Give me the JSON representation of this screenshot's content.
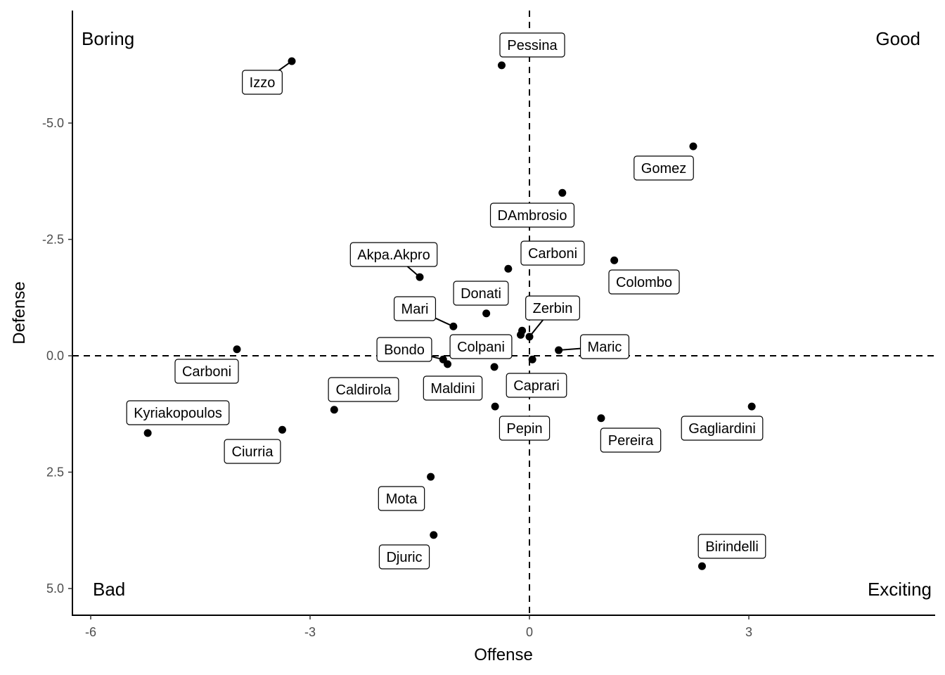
{
  "chart_data": {
    "type": "scatter",
    "xlabel": "Offense",
    "ylabel": "Defense",
    "xlim": [
      -6.25,
      5.5
    ],
    "ylim": [
      5.5,
      -7.0
    ],
    "y_reversed": true,
    "xticks": [
      -6,
      -3,
      0,
      3
    ],
    "xtick_labels": [
      "-6",
      "-3",
      "0",
      "3"
    ],
    "yticks": [
      -5.0,
      -2.5,
      0.0,
      2.5,
      5.0
    ],
    "ytick_labels": [
      "-5.0",
      "-2.5",
      "0.0",
      "2.5",
      "5.0"
    ],
    "grid": false,
    "reference_lines": {
      "x": 0,
      "y": 0,
      "style": "dashed"
    },
    "quadrant_labels": {
      "top_left": "Boring",
      "top_right": "Good",
      "bottom_left": "Bad",
      "bottom_right": "Exciting"
    },
    "points": [
      {
        "name": "Izzo",
        "x": -3.25,
        "y": -6.33
      },
      {
        "name": "Pessina",
        "x": -0.38,
        "y": -6.24
      },
      {
        "name": "Gomez",
        "x": 2.24,
        "y": -4.5
      },
      {
        "name": "DAmbrosio",
        "x": 0.45,
        "y": -3.5
      },
      {
        "name": "Colombo",
        "x": 1.16,
        "y": -2.05
      },
      {
        "name": "Carboni",
        "x": -0.29,
        "y": -1.87
      },
      {
        "name": "Akpa.Akpro",
        "x": -1.5,
        "y": -1.69
      },
      {
        "name": "Donati",
        "x": -0.59,
        "y": -0.91
      },
      {
        "name": "Mari",
        "x": -1.04,
        "y": -0.63
      },
      {
        "name": "",
        "x": -0.1,
        "y": -0.54
      },
      {
        "name": "",
        "x": -0.12,
        "y": -0.45
      },
      {
        "name": "Zerbin",
        "x": 0.0,
        "y": -0.41
      },
      {
        "name": "Maric",
        "x": 0.4,
        "y": -0.12
      },
      {
        "name": "Carboni",
        "x": -4.0,
        "y": -0.14
      },
      {
        "name": "Bondo",
        "x": -1.18,
        "y": 0.08
      },
      {
        "name": "Maldini",
        "x": -1.12,
        "y": 0.18
      },
      {
        "name": "Caprari",
        "x": 0.04,
        "y": 0.08
      },
      {
        "name": "Colpani",
        "x": -0.48,
        "y": 0.24
      },
      {
        "name": "Caldirola",
        "x": -2.67,
        "y": 1.16
      },
      {
        "name": "Kyriakopoulos",
        "x": -5.22,
        "y": 1.66
      },
      {
        "name": "Ciurria",
        "x": -3.38,
        "y": 1.59
      },
      {
        "name": "Pepin",
        "x": -0.47,
        "y": 1.09
      },
      {
        "name": "Pereira",
        "x": 0.98,
        "y": 1.34
      },
      {
        "name": "Gagliardini",
        "x": 3.04,
        "y": 1.09
      },
      {
        "name": "Mota",
        "x": -1.35,
        "y": 2.6
      },
      {
        "name": "Djuric",
        "x": -1.31,
        "y": 3.85
      },
      {
        "name": "Birindelli",
        "x": 2.36,
        "y": 4.52
      }
    ]
  }
}
